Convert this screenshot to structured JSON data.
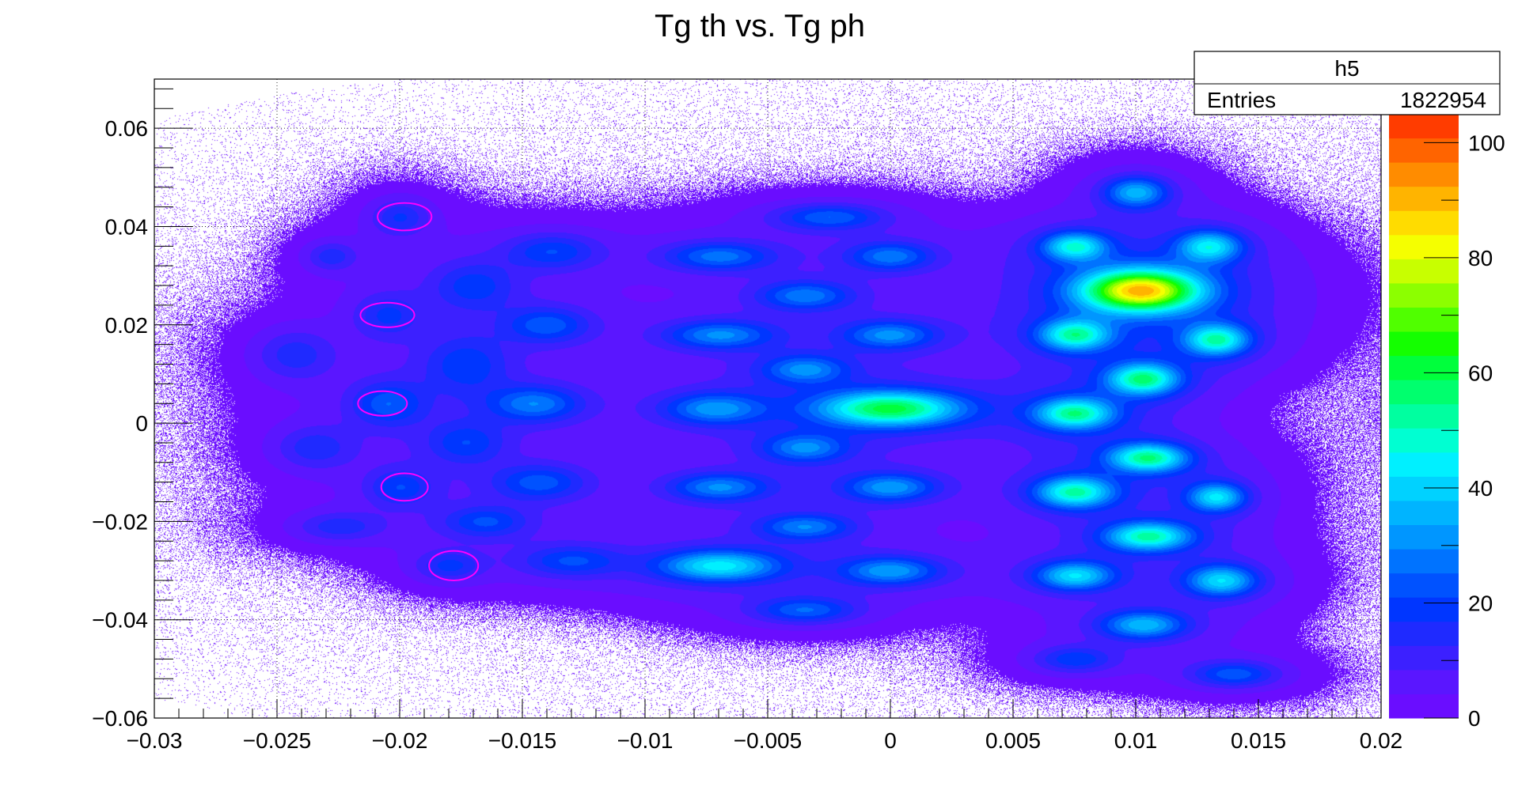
{
  "chart_data": {
    "type": "heatmap",
    "title": "Tg th vs. Tg ph",
    "xlabel": "",
    "ylabel": "",
    "xlim": [
      -0.03,
      0.02
    ],
    "ylim": [
      -0.06,
      0.07
    ],
    "x_ticks": [
      {
        "value": -0.03,
        "label": "−0.03"
      },
      {
        "value": -0.025,
        "label": "−0.025"
      },
      {
        "value": -0.02,
        "label": "−0.02"
      },
      {
        "value": -0.015,
        "label": "−0.015"
      },
      {
        "value": -0.01,
        "label": "−0.01"
      },
      {
        "value": -0.005,
        "label": "−0.005"
      },
      {
        "value": 0,
        "label": "0"
      },
      {
        "value": 0.005,
        "label": "0.005"
      },
      {
        "value": 0.01,
        "label": "0.01"
      },
      {
        "value": 0.015,
        "label": "0.015"
      },
      {
        "value": 0.02,
        "label": "0.02"
      }
    ],
    "y_ticks": [
      {
        "value": -0.06,
        "label": "−0.06"
      },
      {
        "value": -0.04,
        "label": "−0.04"
      },
      {
        "value": -0.02,
        "label": "−0.02"
      },
      {
        "value": 0,
        "label": "0"
      },
      {
        "value": 0.02,
        "label": "0.02"
      },
      {
        "value": 0.04,
        "label": "0.04"
      },
      {
        "value": 0.06,
        "label": "0.06"
      }
    ],
    "grid": true,
    "colorbar": {
      "range": [
        0,
        105
      ],
      "ticks": [
        {
          "value": 0,
          "label": "0"
        },
        {
          "value": 20,
          "label": "20"
        },
        {
          "value": 40,
          "label": "40"
        },
        {
          "value": 60,
          "label": "60"
        },
        {
          "value": 80,
          "label": "80"
        },
        {
          "value": 100,
          "label": "100"
        }
      ],
      "colors": [
        "#6a0dff",
        "#5a16ff",
        "#3c20ff",
        "#1f2aff",
        "#0036ff",
        "#0052ff",
        "#0073ff",
        "#0096ff",
        "#00b4ff",
        "#00d2ff",
        "#00f0ff",
        "#00ffd2",
        "#00ffa0",
        "#00ff6e",
        "#00ff3c",
        "#14ff00",
        "#50ff00",
        "#8cff00",
        "#c8ff00",
        "#f5ff00",
        "#ffdc00",
        "#ffb400",
        "#ff8c00",
        "#ff6400",
        "#ff3c00"
      ]
    },
    "stats_box": {
      "name": "h5",
      "entries_label": "Entries",
      "entries_value": "1822954"
    },
    "clusters": [
      {
        "x": -0.02,
        "y": 0.042,
        "peak": 14,
        "sx": 0.0008,
        "sy": 0.0025
      },
      {
        "x": -0.0228,
        "y": 0.034,
        "peak": 12,
        "sx": 0.0007,
        "sy": 0.002
      },
      {
        "x": -0.017,
        "y": 0.028,
        "peak": 14,
        "sx": 0.0012,
        "sy": 0.0035
      },
      {
        "x": -0.0138,
        "y": 0.035,
        "peak": 16,
        "sx": 0.0013,
        "sy": 0.0025
      },
      {
        "x": -0.0205,
        "y": 0.022,
        "peak": 13,
        "sx": 0.0009,
        "sy": 0.003
      },
      {
        "x": -0.0243,
        "y": 0.014,
        "peak": 12,
        "sx": 0.0011,
        "sy": 0.0035
      },
      {
        "x": -0.0173,
        "y": 0.012,
        "peak": 14,
        "sx": 0.0012,
        "sy": 0.004
      },
      {
        "x": -0.014,
        "y": 0.02,
        "peak": 18,
        "sx": 0.0012,
        "sy": 0.0025
      },
      {
        "x": -0.0205,
        "y": 0.004,
        "peak": 18,
        "sx": 0.001,
        "sy": 0.003
      },
      {
        "x": -0.0145,
        "y": 0.004,
        "peak": 22,
        "sx": 0.0013,
        "sy": 0.0025
      },
      {
        "x": -0.0235,
        "y": -0.005,
        "peak": 12,
        "sx": 0.0011,
        "sy": 0.003
      },
      {
        "x": -0.0173,
        "y": -0.004,
        "peak": 14,
        "sx": 0.0011,
        "sy": 0.003
      },
      {
        "x": -0.02,
        "y": -0.013,
        "peak": 15,
        "sx": 0.0009,
        "sy": 0.0025
      },
      {
        "x": -0.0143,
        "y": -0.012,
        "peak": 18,
        "sx": 0.0013,
        "sy": 0.0025
      },
      {
        "x": -0.0225,
        "y": -0.021,
        "peak": 12,
        "sx": 0.0012,
        "sy": 0.002
      },
      {
        "x": -0.0165,
        "y": -0.02,
        "peak": 16,
        "sx": 0.0012,
        "sy": 0.0022
      },
      {
        "x": -0.018,
        "y": -0.029,
        "peak": 14,
        "sx": 0.0009,
        "sy": 0.002
      },
      {
        "x": -0.013,
        "y": -0.028,
        "peak": 16,
        "sx": 0.0014,
        "sy": 0.0022
      },
      {
        "x": -0.007,
        "y": 0.034,
        "peak": 22,
        "sx": 0.0015,
        "sy": 0.002
      },
      {
        "x": -0.0025,
        "y": 0.042,
        "peak": 20,
        "sx": 0.0015,
        "sy": 0.0018
      },
      {
        "x": -0.0035,
        "y": 0.026,
        "peak": 22,
        "sx": 0.0013,
        "sy": 0.002
      },
      {
        "x": 0.0,
        "y": 0.034,
        "peak": 22,
        "sx": 0.0012,
        "sy": 0.002
      },
      {
        "x": -0.007,
        "y": 0.018,
        "peak": 24,
        "sx": 0.0015,
        "sy": 0.002
      },
      {
        "x": -0.0,
        "y": 0.018,
        "peak": 24,
        "sx": 0.0013,
        "sy": 0.002
      },
      {
        "x": -0.0035,
        "y": 0.011,
        "peak": 22,
        "sx": 0.0012,
        "sy": 0.002
      },
      {
        "x": -0.0072,
        "y": 0.003,
        "peak": 24,
        "sx": 0.0014,
        "sy": 0.0022
      },
      {
        "x": 0.0,
        "y": 0.003,
        "peak": 50,
        "sx": 0.002,
        "sy": 0.0025
      },
      {
        "x": -0.0035,
        "y": -0.005,
        "peak": 22,
        "sx": 0.0012,
        "sy": 0.002
      },
      {
        "x": -0.007,
        "y": -0.013,
        "peak": 24,
        "sx": 0.0014,
        "sy": 0.002
      },
      {
        "x": 0.0,
        "y": -0.013,
        "peak": 26,
        "sx": 0.0013,
        "sy": 0.002
      },
      {
        "x": -0.0035,
        "y": -0.021,
        "peak": 22,
        "sx": 0.0013,
        "sy": 0.0018
      },
      {
        "x": -0.007,
        "y": -0.029,
        "peak": 36,
        "sx": 0.0017,
        "sy": 0.0022
      },
      {
        "x": 0.0,
        "y": -0.03,
        "peak": 26,
        "sx": 0.0014,
        "sy": 0.002
      },
      {
        "x": -0.0035,
        "y": -0.038,
        "peak": 20,
        "sx": 0.0014,
        "sy": 0.0018
      },
      {
        "x": 0.01,
        "y": 0.047,
        "peak": 30,
        "sx": 0.0009,
        "sy": 0.0022
      },
      {
        "x": 0.0075,
        "y": 0.036,
        "peak": 36,
        "sx": 0.0009,
        "sy": 0.002
      },
      {
        "x": 0.013,
        "y": 0.036,
        "peak": 34,
        "sx": 0.0009,
        "sy": 0.0022
      },
      {
        "x": 0.0102,
        "y": 0.027,
        "peak": 75,
        "sx": 0.0017,
        "sy": 0.003
      },
      {
        "x": 0.0075,
        "y": 0.018,
        "peak": 40,
        "sx": 0.001,
        "sy": 0.0022
      },
      {
        "x": 0.0133,
        "y": 0.017,
        "peak": 40,
        "sx": 0.0009,
        "sy": 0.0022
      },
      {
        "x": 0.0103,
        "y": 0.009,
        "peak": 44,
        "sx": 0.001,
        "sy": 0.0022
      },
      {
        "x": 0.0075,
        "y": 0.002,
        "peak": 42,
        "sx": 0.0011,
        "sy": 0.0022
      },
      {
        "x": 0.0105,
        "y": -0.007,
        "peak": 44,
        "sx": 0.0011,
        "sy": 0.002
      },
      {
        "x": 0.0075,
        "y": -0.014,
        "peak": 42,
        "sx": 0.0011,
        "sy": 0.0022
      },
      {
        "x": 0.0133,
        "y": -0.015,
        "peak": 34,
        "sx": 0.0008,
        "sy": 0.002
      },
      {
        "x": 0.0105,
        "y": -0.023,
        "peak": 42,
        "sx": 0.0012,
        "sy": 0.002
      },
      {
        "x": 0.0075,
        "y": -0.031,
        "peak": 34,
        "sx": 0.0011,
        "sy": 0.002
      },
      {
        "x": 0.0135,
        "y": -0.032,
        "peak": 34,
        "sx": 0.001,
        "sy": 0.0022
      },
      {
        "x": 0.0103,
        "y": -0.041,
        "peak": 30,
        "sx": 0.0012,
        "sy": 0.002
      },
      {
        "x": 0.0075,
        "y": -0.048,
        "peak": 16,
        "sx": 0.0011,
        "sy": 0.0018
      },
      {
        "x": 0.014,
        "y": -0.051,
        "peak": 20,
        "sx": 0.0012,
        "sy": 0.0018
      }
    ],
    "cut_contours": [
      {
        "x": -0.0198,
        "y": 0.042,
        "rx": 0.0011,
        "ry": 0.0028
      },
      {
        "x": -0.0205,
        "y": 0.022,
        "rx": 0.0011,
        "ry": 0.0025
      },
      {
        "x": -0.0207,
        "y": 0.004,
        "rx": 0.001,
        "ry": 0.0025
      },
      {
        "x": -0.0198,
        "y": -0.013,
        "rx": 0.00095,
        "ry": 0.0028
      },
      {
        "x": -0.0178,
        "y": -0.029,
        "rx": 0.001,
        "ry": 0.003
      }
    ],
    "contour_color": "#ff00ff",
    "background_density": 0.9
  }
}
